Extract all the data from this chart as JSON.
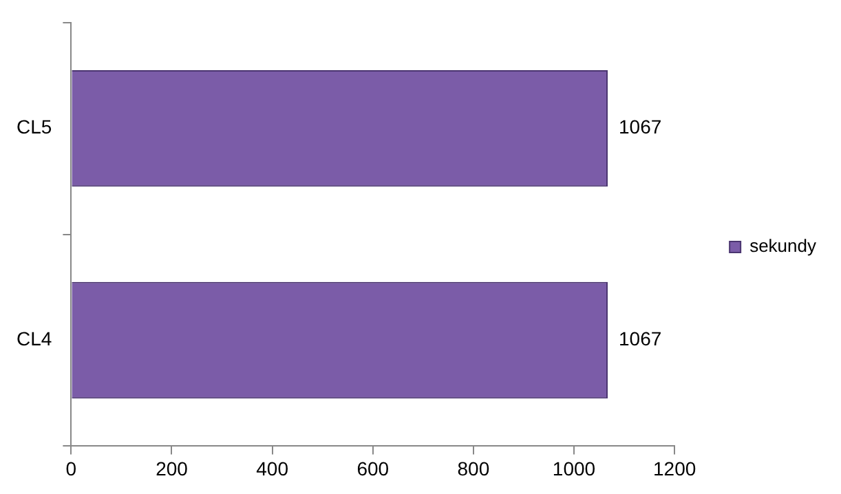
{
  "chart_data": {
    "type": "bar",
    "orientation": "horizontal",
    "categories": [
      "CL5",
      "CL4"
    ],
    "series": [
      {
        "name": "sekundy",
        "color": "#7b5ca8",
        "values": [
          1067,
          1067
        ]
      }
    ],
    "xlim": [
      0,
      1200
    ],
    "xticks": [
      0,
      200,
      400,
      600,
      800,
      1000,
      1200
    ],
    "grid": false,
    "legend": "right",
    "data_labels": true
  }
}
